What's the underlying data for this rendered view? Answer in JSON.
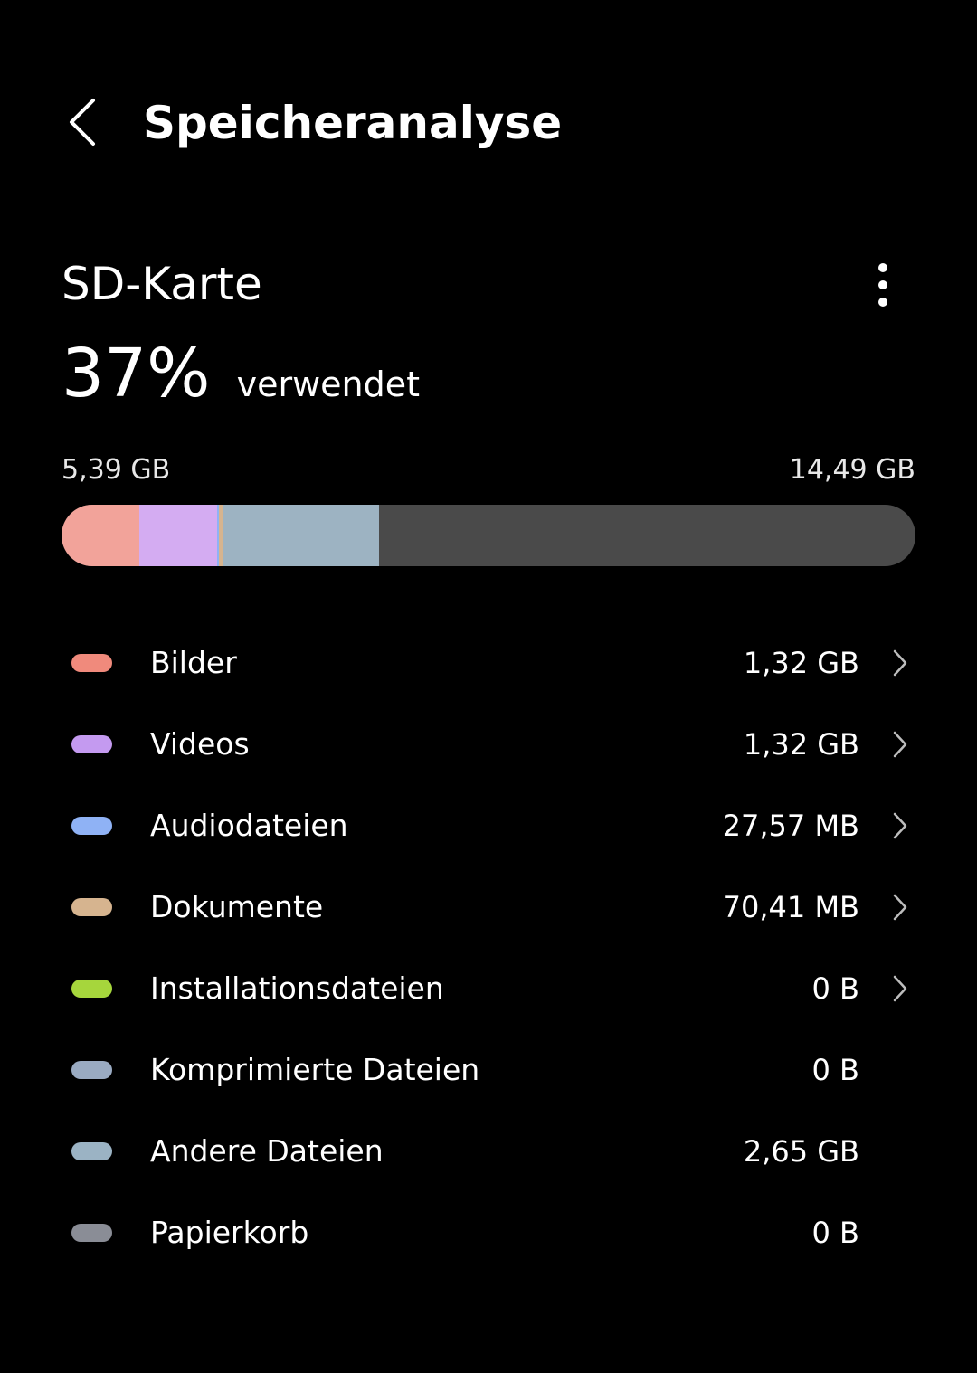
{
  "header": {
    "title": "Speicheranalyse",
    "back_icon": "back-arrow-icon"
  },
  "storage": {
    "name": "SD-Karte",
    "used_percent": "37%",
    "used_label": "verwendet",
    "used_amount": "5,39 GB",
    "total_amount": "14,49 GB",
    "used_fraction": 0.37,
    "menu_icon": "more-vertical-icon"
  },
  "categories": [
    {
      "key": "bilder",
      "label": "Bilder",
      "value": "1,32 GB",
      "color": "#F08A7C",
      "bar_color": "#F2A39A",
      "has_chevron": true,
      "bar_fraction": 0.091
    },
    {
      "key": "videos",
      "label": "Videos",
      "value": "1,32 GB",
      "color": "#C49AF0",
      "bar_color": "#D4ACF2",
      "has_chevron": true,
      "bar_fraction": 0.091
    },
    {
      "key": "audiodateien",
      "label": "Audiodateien",
      "value": "27,57 MB",
      "color": "#8FB2F5",
      "bar_color": "#8FB2F5",
      "has_chevron": true,
      "bar_fraction": 0.002
    },
    {
      "key": "dokumente",
      "label": "Dokumente",
      "value": "70,41 MB",
      "color": "#D6B48F",
      "bar_color": "#D6B48F",
      "has_chevron": true,
      "bar_fraction": 0.005
    },
    {
      "key": "installationsdateien",
      "label": "Installationsdateien",
      "value": "0 B",
      "color": "#A6D63C",
      "bar_color": "#A6D63C",
      "has_chevron": true,
      "bar_fraction": 0
    },
    {
      "key": "komprimierte",
      "label": "Komprimierte Dateien",
      "value": "0 B",
      "color": "#9AABC2",
      "bar_color": "#9AABC2",
      "has_chevron": false,
      "bar_fraction": 0
    },
    {
      "key": "andere",
      "label": "Andere Dateien",
      "value": "2,65 GB",
      "color": "#9BB3C4",
      "bar_color": "#9DB3C2",
      "has_chevron": false,
      "bar_fraction": 0.183
    },
    {
      "key": "papierkorb",
      "label": "Papierkorb",
      "value": "0 B",
      "color": "#8A8D96",
      "bar_color": "#8A8D96",
      "has_chevron": false,
      "bar_fraction": 0
    }
  ],
  "colors": {
    "background": "#000000",
    "bar_free": "#4A4A4A",
    "text": "#FFFFFF",
    "chevron": "#BDBDBD"
  },
  "chevron_icon": "chevron-right-icon"
}
